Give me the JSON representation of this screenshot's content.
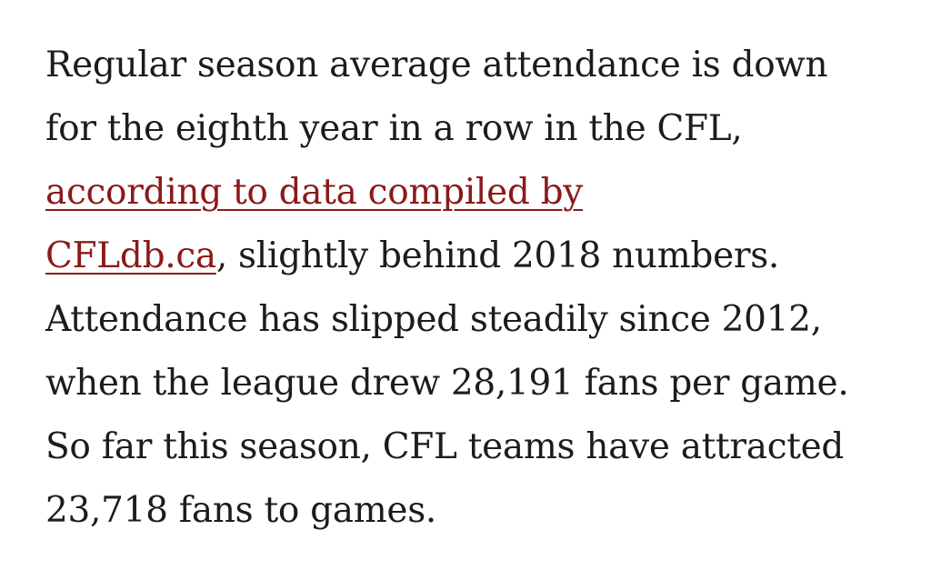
{
  "article": {
    "line1": "Regular season average attendance is down",
    "line2": "for the eighth year in a row in the CFL,",
    "link_part1": "according to data compiled by",
    "link_part2": "CFLdb.ca",
    "line4_rest": ", slightly behind 2018 numbers.",
    "line5": "Attendance has slipped steadily since 2012,",
    "line6": "when the league drew 28,191 fans per game.",
    "line7": "So far this season, CFL teams have attracted",
    "line8": "23,718 fans to games."
  },
  "colors": {
    "text": "#1c1c1c",
    "link": "#8b1a1a",
    "background": "#ffffff"
  }
}
